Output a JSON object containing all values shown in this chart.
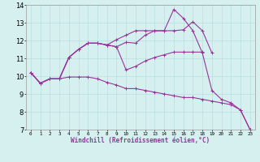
{
  "xlabel": "Windchill (Refroidissement éolien,°C)",
  "background_color": "#d6f0f0",
  "line_color": "#993399",
  "grid_color": "#b8dede",
  "x_hours": [
    0,
    1,
    2,
    3,
    4,
    5,
    6,
    7,
    8,
    9,
    10,
    11,
    12,
    13,
    14,
    15,
    16,
    17,
    18,
    19,
    20,
    21,
    22,
    23
  ],
  "series": [
    [
      10.2,
      9.6,
      9.85,
      9.85,
      11.05,
      11.5,
      11.85,
      11.85,
      11.75,
      11.65,
      11.9,
      11.85,
      12.3,
      12.55,
      12.55,
      12.55,
      12.6,
      13.05,
      12.55,
      11.3,
      null,
      null,
      null,
      null
    ],
    [
      10.2,
      9.6,
      9.85,
      9.85,
      11.05,
      11.5,
      11.85,
      11.85,
      11.75,
      11.65,
      10.35,
      10.55,
      10.85,
      11.05,
      11.2,
      11.35,
      11.35,
      11.35,
      11.35,
      null,
      null,
      null,
      null,
      null
    ],
    [
      10.2,
      9.6,
      9.85,
      9.85,
      9.95,
      9.95,
      9.95,
      9.85,
      9.65,
      9.5,
      9.3,
      9.3,
      9.2,
      9.1,
      9.0,
      8.9,
      8.8,
      8.8,
      8.7,
      8.6,
      8.5,
      8.4,
      8.1,
      7.0
    ],
    [
      10.2,
      9.6,
      9.85,
      9.85,
      11.05,
      11.5,
      11.85,
      11.85,
      11.75,
      12.05,
      12.3,
      12.55,
      12.55,
      12.55,
      12.55,
      13.75,
      13.25,
      12.55,
      11.3,
      9.2,
      8.7,
      8.5,
      8.1,
      7.0
    ]
  ],
  "xlim": [
    -0.5,
    23.5
  ],
  "ylim": [
    7,
    14
  ],
  "yticks": [
    7,
    8,
    9,
    10,
    11,
    12,
    13,
    14
  ],
  "xtick_labels": [
    "0",
    "1",
    "2",
    "3",
    "4",
    "5",
    "6",
    "7",
    "8",
    "9",
    "10",
    "11",
    "12",
    "13",
    "14",
    "15",
    "16",
    "17",
    "18",
    "19",
    "20",
    "21",
    "22",
    "23"
  ],
  "marker": "+",
  "markersize": 3,
  "linewidth": 0.8,
  "xlabel_fontsize": 5.5,
  "ytick_fontsize": 6,
  "xtick_fontsize": 4.2
}
